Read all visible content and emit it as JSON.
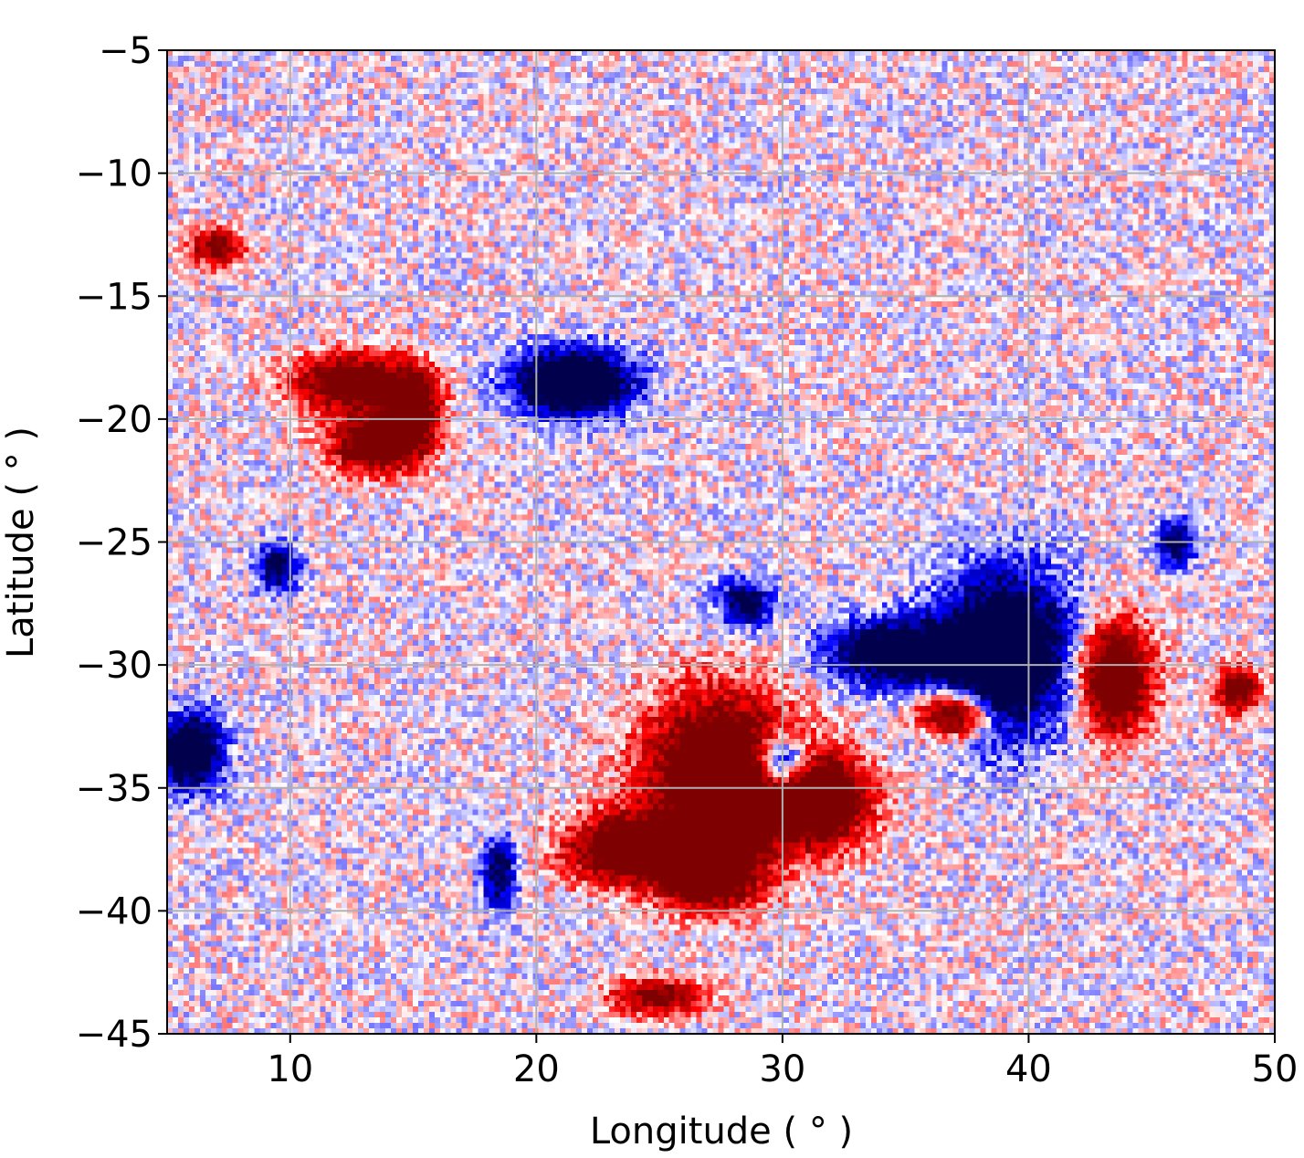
{
  "chart_data": {
    "type": "heatmap",
    "title": "",
    "xlabel": "Longitude ( ° )",
    "ylabel": "Latitude ( ° )",
    "xlim": [
      5,
      50
    ],
    "ylim": [
      -45,
      -5
    ],
    "xticks": [
      10,
      20,
      30,
      40,
      50
    ],
    "xtick_labels": [
      "10",
      "20",
      "30",
      "40",
      "50"
    ],
    "yticks": [
      -5,
      -10,
      -15,
      -20,
      -25,
      -30,
      -35,
      -40,
      -45
    ],
    "ytick_labels": [
      "−5",
      "−10",
      "−15",
      "−20",
      "−25",
      "−30",
      "−35",
      "−40",
      "−45"
    ],
    "grid": true,
    "colormap": "seismic",
    "colors": {
      "positive": "#7f0000",
      "negative": "#00004c",
      "neutral": "#ffffff",
      "grid": "#b0b0b0"
    },
    "features": [
      {
        "polarity": "positive",
        "lon": 27.5,
        "lat": -34.5,
        "rx": 3.2,
        "ry": 3.5,
        "strength": 1.0
      },
      {
        "polarity": "positive",
        "lon": 31.5,
        "lat": -35.5,
        "rx": 2.2,
        "ry": 2.0,
        "strength": 0.9
      },
      {
        "polarity": "positive",
        "lon": 23.5,
        "lat": -37.5,
        "rx": 2.5,
        "ry": 1.5,
        "strength": 0.8
      },
      {
        "polarity": "positive",
        "lon": 27.0,
        "lat": -38.5,
        "rx": 2.2,
        "ry": 1.5,
        "strength": 0.8
      },
      {
        "polarity": "positive",
        "lon": 37.0,
        "lat": -32.0,
        "rx": 1.5,
        "ry": 1.0,
        "strength": 0.9
      },
      {
        "polarity": "positive",
        "lon": 43.5,
        "lat": -30.5,
        "rx": 1.6,
        "ry": 2.4,
        "strength": 0.9
      },
      {
        "polarity": "positive",
        "lon": 12.5,
        "lat": -18.5,
        "rx": 2.5,
        "ry": 1.2,
        "strength": 0.8
      },
      {
        "polarity": "positive",
        "lon": 13.5,
        "lat": -21.0,
        "rx": 2.0,
        "ry": 1.3,
        "strength": 0.8
      },
      {
        "polarity": "positive",
        "lon": 15.0,
        "lat": -19.5,
        "rx": 1.2,
        "ry": 1.6,
        "strength": 0.7
      },
      {
        "polarity": "positive",
        "lon": 48.5,
        "lat": -31.0,
        "rx": 0.9,
        "ry": 1.0,
        "strength": 0.7
      },
      {
        "polarity": "positive",
        "lon": 25.0,
        "lat": -43.5,
        "rx": 2.0,
        "ry": 0.8,
        "strength": 0.6
      },
      {
        "polarity": "positive",
        "lon": 7.0,
        "lat": -13.0,
        "rx": 1.2,
        "ry": 0.8,
        "strength": 0.6
      },
      {
        "polarity": "negative",
        "lon": 39.0,
        "lat": -29.5,
        "rx": 2.8,
        "ry": 3.4,
        "strength": 1.0
      },
      {
        "polarity": "negative",
        "lon": 34.5,
        "lat": -29.5,
        "rx": 2.8,
        "ry": 1.4,
        "strength": 0.8
      },
      {
        "polarity": "negative",
        "lon": 30.0,
        "lat": -34.0,
        "rx": 1.2,
        "ry": 1.2,
        "strength": 0.9
      },
      {
        "polarity": "negative",
        "lon": 21.5,
        "lat": -18.5,
        "rx": 2.5,
        "ry": 1.4,
        "strength": 1.0
      },
      {
        "polarity": "negative",
        "lon": 6.0,
        "lat": -33.5,
        "rx": 1.3,
        "ry": 1.6,
        "strength": 0.9
      },
      {
        "polarity": "negative",
        "lon": 28.5,
        "lat": -27.5,
        "rx": 1.2,
        "ry": 1.0,
        "strength": 0.6
      },
      {
        "polarity": "negative",
        "lon": 46.0,
        "lat": -25.0,
        "rx": 0.8,
        "ry": 1.0,
        "strength": 0.6
      },
      {
        "polarity": "negative",
        "lon": 9.5,
        "lat": -26.0,
        "rx": 0.9,
        "ry": 1.0,
        "strength": 0.6
      },
      {
        "polarity": "negative",
        "lon": 18.5,
        "lat": -38.5,
        "rx": 0.7,
        "ry": 1.5,
        "strength": 0.6
      }
    ]
  }
}
